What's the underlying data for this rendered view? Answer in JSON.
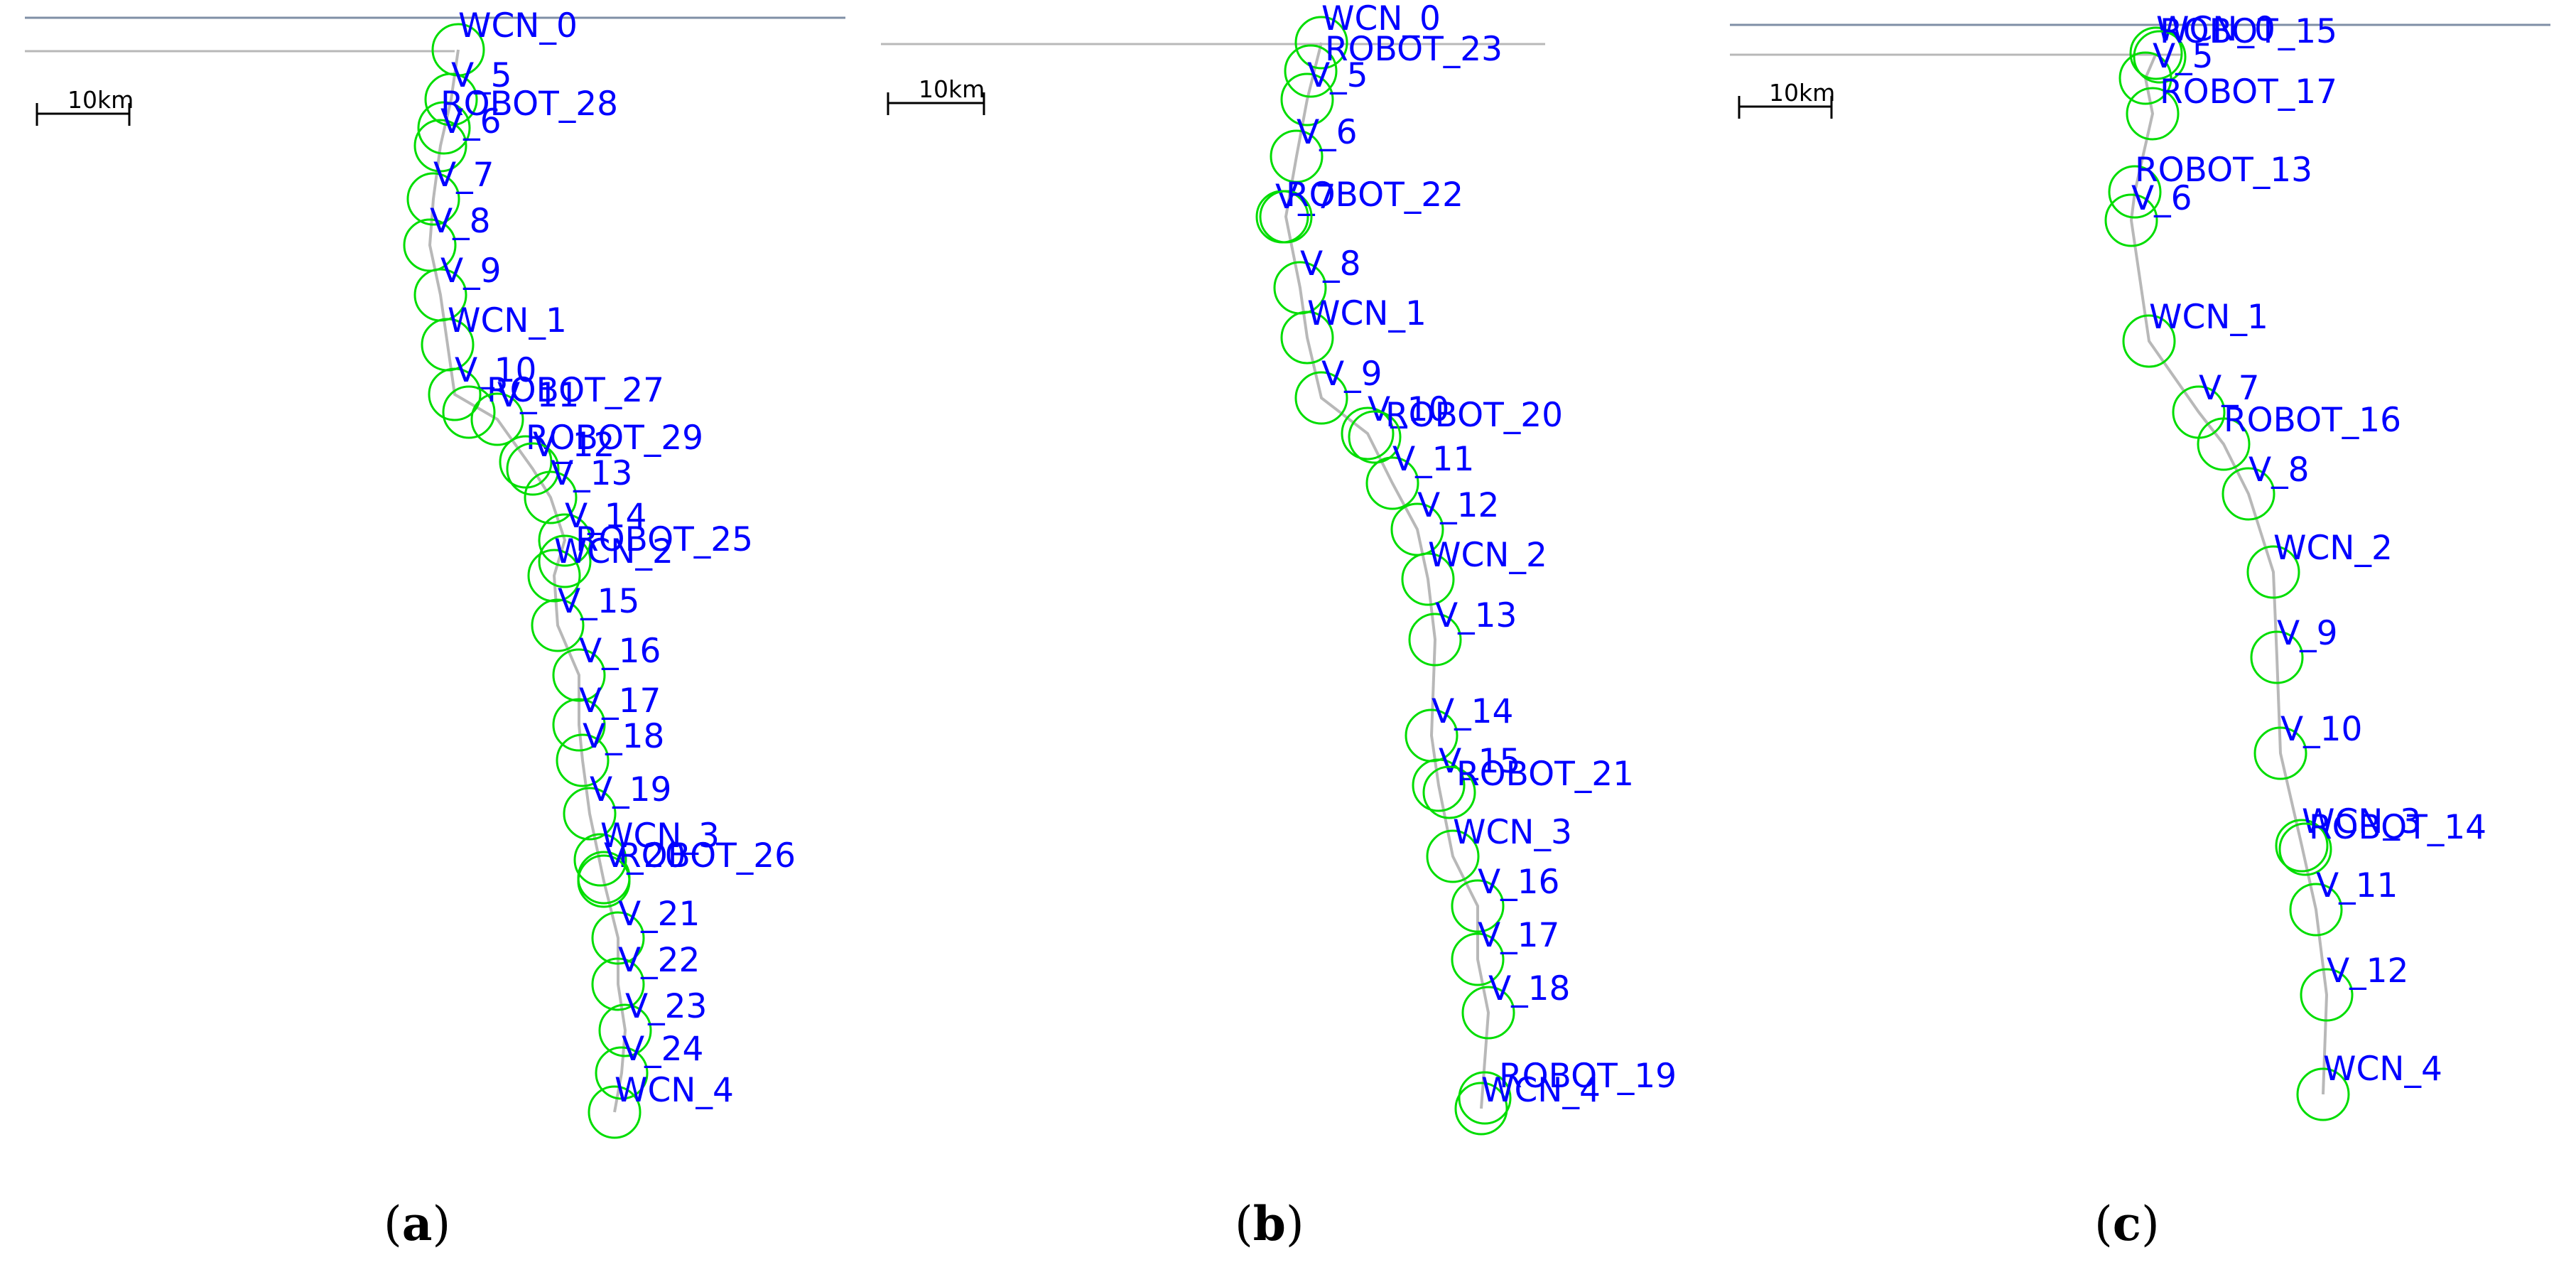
{
  "colors": {
    "node_circle": "#00dd00",
    "node_label": "#0000ff",
    "route_line": "#b8b8b8",
    "coast_line": "#7f8fa6",
    "background": "#ffffff"
  },
  "panels": [
    {
      "id": "a",
      "caption_open": "(",
      "caption_letter": "a",
      "caption_close": ")",
      "scale_label": "10km",
      "nodes": [
        {
          "label": "WCN_0"
        },
        {
          "label": "V_5"
        },
        {
          "label": "ROBOT_28"
        },
        {
          "label": "V_6"
        },
        {
          "label": "V_7"
        },
        {
          "label": "V_8"
        },
        {
          "label": "V_9"
        },
        {
          "label": "WCN_1"
        },
        {
          "label": "V_10"
        },
        {
          "label": "ROBOT_27"
        },
        {
          "label": "V_11"
        },
        {
          "label": "ROBOT_29"
        },
        {
          "label": "V_12"
        },
        {
          "label": "V_13"
        },
        {
          "label": "V_14"
        },
        {
          "label": "ROBOT_25"
        },
        {
          "label": "WCN_2"
        },
        {
          "label": "V_15"
        },
        {
          "label": "V_16"
        },
        {
          "label": "V_17"
        },
        {
          "label": "V_18"
        },
        {
          "label": "V_19"
        },
        {
          "label": "WCN_3"
        },
        {
          "label": "ROBOT_26"
        },
        {
          "label": "V_20"
        },
        {
          "label": "V_21"
        },
        {
          "label": "V_22"
        },
        {
          "label": "V_23"
        },
        {
          "label": "V_24"
        },
        {
          "label": "WCN_4"
        }
      ]
    },
    {
      "id": "b",
      "caption_open": "(",
      "caption_letter": "b",
      "caption_close": ")",
      "scale_label": "10km",
      "nodes": [
        {
          "label": "WCN_0"
        },
        {
          "label": "ROBOT_23"
        },
        {
          "label": "V_5"
        },
        {
          "label": "V_6"
        },
        {
          "label": "V_7"
        },
        {
          "label": "ROBOT_22"
        },
        {
          "label": "V_8"
        },
        {
          "label": "WCN_1"
        },
        {
          "label": "V_9"
        },
        {
          "label": "V_10"
        },
        {
          "label": "ROBOT_20"
        },
        {
          "label": "V_11"
        },
        {
          "label": "V_12"
        },
        {
          "label": "WCN_2"
        },
        {
          "label": "V_13"
        },
        {
          "label": "V_14"
        },
        {
          "label": "V_15"
        },
        {
          "label": "ROBOT_21"
        },
        {
          "label": "WCN_3"
        },
        {
          "label": "V_16"
        },
        {
          "label": "V_17"
        },
        {
          "label": "V_18"
        },
        {
          "label": "ROBOT_19"
        },
        {
          "label": "WCN_4"
        }
      ]
    },
    {
      "id": "c",
      "caption_open": "(",
      "caption_letter": "c",
      "caption_close": ")",
      "scale_label": "10km",
      "nodes": [
        {
          "label": "WCN_0"
        },
        {
          "label": "ROBOT_15"
        },
        {
          "label": "V_5"
        },
        {
          "label": "ROBOT_17"
        },
        {
          "label": "ROBOT_13"
        },
        {
          "label": "V_6"
        },
        {
          "label": "WCN_1"
        },
        {
          "label": "V_7"
        },
        {
          "label": "ROBOT_16"
        },
        {
          "label": "V_8"
        },
        {
          "label": "WCN_2"
        },
        {
          "label": "V_9"
        },
        {
          "label": "V_10"
        },
        {
          "label": "WCN_3"
        },
        {
          "label": "ROBOT_14"
        },
        {
          "label": "V_11"
        },
        {
          "label": "V_12"
        },
        {
          "label": "WCN_4"
        }
      ]
    }
  ]
}
